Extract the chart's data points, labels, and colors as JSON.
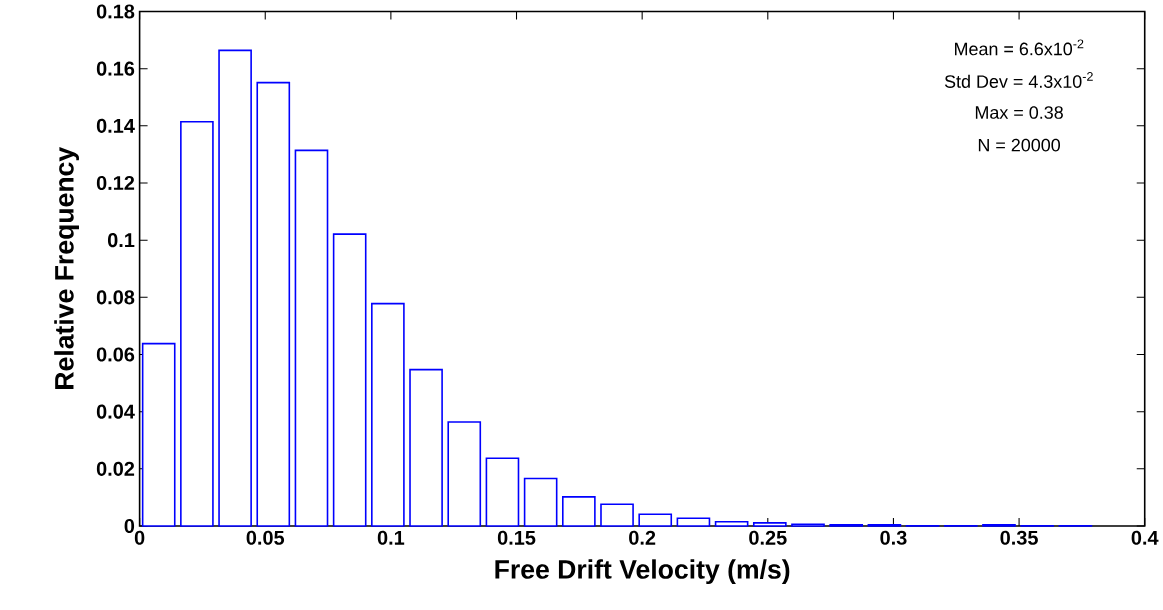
{
  "chart_data": {
    "type": "histogram",
    "xlabel": "Free Drift Velocity (m/s)",
    "ylabel": "Relative Frequency",
    "bins": [
      0,
      0.0152,
      0.0304,
      0.0456,
      0.0608,
      0.076,
      0.0912,
      0.1064,
      0.1216,
      0.1368,
      0.152,
      0.1672,
      0.1824,
      0.1976,
      0.2128,
      0.228,
      0.2432,
      0.2584,
      0.2736,
      0.2888,
      0.304,
      0.3192,
      0.3344,
      0.3496,
      0.3648,
      0.38
    ],
    "values": [
      0.0638,
      0.1414,
      0.1664,
      0.1551,
      0.1314,
      0.1021,
      0.0778,
      0.0547,
      0.0364,
      0.0237,
      0.0166,
      0.0102,
      0.0076,
      0.0041,
      0.0027,
      0.0015,
      0.0011,
      0.0006,
      0.0004,
      0.0004,
      0.0001,
      0.0001,
      0.0004,
      0.0001,
      0.0001
    ],
    "color": "#0000ff",
    "xlim": [
      0,
      0.4
    ],
    "xticks": [
      0,
      0.05,
      0.1,
      0.15,
      0.2,
      0.25,
      0.3,
      0.35,
      0.4
    ],
    "ylim": [
      0,
      0.18
    ],
    "yticks": [
      0,
      0.02,
      0.04,
      0.06,
      0.08,
      0.1,
      0.12,
      0.14,
      0.16,
      0.18
    ],
    "annotations": [
      "Mean = 6.6x10$^{-2}$",
      "Std Dev = 4.3x10$^{-2}$",
      "Max = 0.38",
      "N = 20000"
    ],
    "grid": false
  }
}
